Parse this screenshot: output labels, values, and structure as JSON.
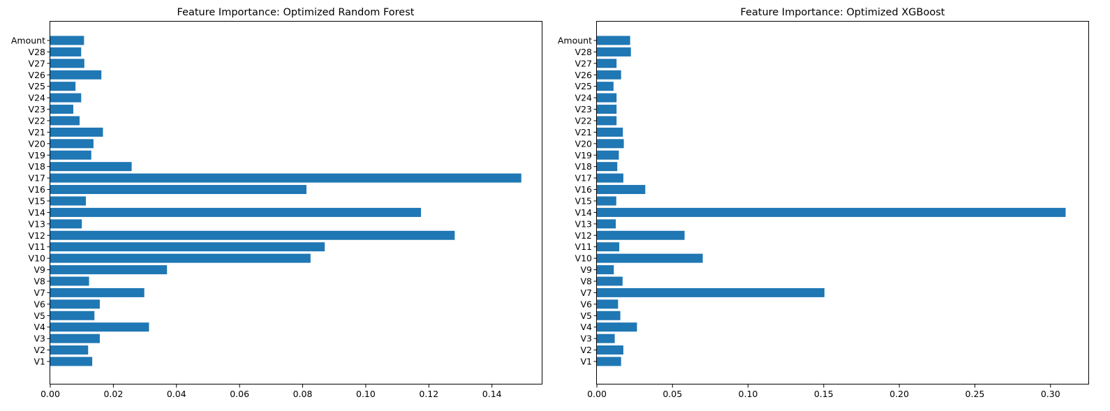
{
  "chart_data": [
    {
      "type": "bar",
      "orientation": "horizontal",
      "title": "Feature Importance: Optimized Random Forest",
      "xlabel": "",
      "ylabel": "",
      "xlim": [
        0,
        0.156
      ],
      "xticks": [
        "0.00",
        "0.02",
        "0.04",
        "0.06",
        "0.08",
        "0.10",
        "0.12",
        "0.14"
      ],
      "xtick_values": [
        0,
        0.02,
        0.04,
        0.06,
        0.08,
        0.1,
        0.12,
        0.14
      ],
      "grid": false,
      "bar_color": "#1f77b4",
      "categories": [
        "V1",
        "V2",
        "V3",
        "V4",
        "V5",
        "V6",
        "V7",
        "V8",
        "V9",
        "V10",
        "V11",
        "V12",
        "V13",
        "V14",
        "V15",
        "V16",
        "V17",
        "V18",
        "V19",
        "V20",
        "V21",
        "V22",
        "V23",
        "V24",
        "V25",
        "V26",
        "V27",
        "V28",
        "Amount"
      ],
      "values": [
        0.0133,
        0.012,
        0.0157,
        0.0313,
        0.014,
        0.0157,
        0.0298,
        0.0123,
        0.037,
        0.0825,
        0.087,
        0.1282,
        0.01,
        0.1175,
        0.0113,
        0.0812,
        0.1493,
        0.0258,
        0.013,
        0.0137,
        0.0167,
        0.0093,
        0.0073,
        0.0098,
        0.008,
        0.0162,
        0.0108,
        0.0098,
        0.0107
      ]
    },
    {
      "type": "bar",
      "orientation": "horizontal",
      "title": "Feature Importance: Optimized XGBoost",
      "xlabel": "",
      "ylabel": "",
      "xlim": [
        0,
        0.3255
      ],
      "xticks": [
        "0.00",
        "0.05",
        "0.10",
        "0.15",
        "0.20",
        "0.25",
        "0.30"
      ],
      "xtick_values": [
        0,
        0.05,
        0.1,
        0.15,
        0.2,
        0.25,
        0.3
      ],
      "grid": false,
      "bar_color": "#1f77b4",
      "categories": [
        "V1",
        "V2",
        "V3",
        "V4",
        "V5",
        "V6",
        "V7",
        "V8",
        "V9",
        "V10",
        "V11",
        "V12",
        "V13",
        "V14",
        "V15",
        "V16",
        "V17",
        "V18",
        "V19",
        "V20",
        "V21",
        "V22",
        "V23",
        "V24",
        "V25",
        "V26",
        "V27",
        "V28",
        "Amount"
      ],
      "values": [
        0.016,
        0.0175,
        0.0118,
        0.0265,
        0.0155,
        0.014,
        0.1505,
        0.017,
        0.0112,
        0.07,
        0.0148,
        0.058,
        0.0125,
        0.31,
        0.0128,
        0.032,
        0.0175,
        0.0135,
        0.0145,
        0.0178,
        0.0172,
        0.013,
        0.013,
        0.013,
        0.011,
        0.016,
        0.013,
        0.0225,
        0.022
      ]
    }
  ]
}
